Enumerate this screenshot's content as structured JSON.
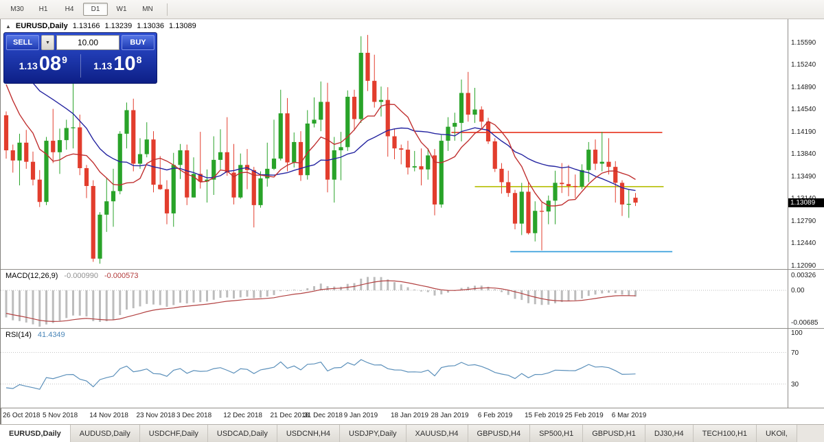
{
  "toolbar": {
    "timeframes": [
      {
        "label": "M30",
        "active": false
      },
      {
        "label": "H1",
        "active": false
      },
      {
        "label": "H4",
        "active": false
      },
      {
        "label": "D1",
        "active": true
      },
      {
        "label": "W1",
        "active": false
      },
      {
        "label": "MN",
        "active": false
      }
    ]
  },
  "icons": {
    "one_click_collapse": "▲",
    "dropdown_arrow": "▼"
  },
  "chart_header": {
    "symbol": "EURUSD,Daily",
    "open": "1.13166",
    "high": "1.13239",
    "low": "1.13036",
    "close": "1.13089"
  },
  "trade_panel": {
    "sell_label": "SELL",
    "buy_label": "BUY",
    "volume": "10.00",
    "bid_prefix": "1.13",
    "bid_big": "08",
    "bid_sup": "9",
    "ask_prefix": "1.13",
    "ask_big": "10",
    "ask_sup": "8"
  },
  "price_axis": {
    "labels": [
      "1.15590",
      "1.15240",
      "1.14890",
      "1.14540",
      "1.14190",
      "1.13840",
      "1.13490",
      "1.13140",
      "1.12790",
      "1.12440",
      "1.12090"
    ],
    "current": "1.13089"
  },
  "macd_panel": {
    "label": "MACD(12,26,9)",
    "value_main": "-0.000990",
    "value_signal": "-0.000573",
    "axis_labels": [
      "0.00326",
      "0.00",
      "-0.00685"
    ]
  },
  "rsi_panel": {
    "label": "RSI(14)",
    "value": "41.4349",
    "levels": [
      "100",
      "70",
      "30"
    ]
  },
  "date_axis": {
    "labels": [
      {
        "text": "26 Oct 2018",
        "index": 2
      },
      {
        "text": "5 Nov 2018",
        "index": 8
      },
      {
        "text": "14 Nov 2018",
        "index": 15
      },
      {
        "text": "23 Nov 2018",
        "index": 22
      },
      {
        "text": "3 Dec 2018",
        "index": 28
      },
      {
        "text": "12 Dec 2018",
        "index": 35
      },
      {
        "text": "21 Dec 2018",
        "index": 42
      },
      {
        "text": "31 Dec 2018",
        "index": 47
      },
      {
        "text": "9 Jan 2019",
        "index": 53
      },
      {
        "text": "18 Jan 2019",
        "index": 60
      },
      {
        "text": "28 Jan 2019",
        "index": 66
      },
      {
        "text": "6 Feb 2019",
        "index": 73
      },
      {
        "text": "15 Feb 2019",
        "index": 80
      },
      {
        "text": "25 Feb 2019",
        "index": 86
      },
      {
        "text": "6 Mar 2019",
        "index": 93
      }
    ]
  },
  "symbol_tabs": [
    {
      "label": "EURUSD,Daily",
      "active": true
    },
    {
      "label": "AUDUSD,Daily",
      "active": false
    },
    {
      "label": "USDCHF,Daily",
      "active": false
    },
    {
      "label": "USDCAD,Daily",
      "active": false
    },
    {
      "label": "USDCNH,H4",
      "active": false
    },
    {
      "label": "USDJPY,Daily",
      "active": false
    },
    {
      "label": "XAUUSD,H4",
      "active": false
    },
    {
      "label": "GBPUSD,H4",
      "active": false
    },
    {
      "label": "SP500,H1",
      "active": false
    },
    {
      "label": "GBPUSD,H1",
      "active": false
    },
    {
      "label": "DJ30,H4",
      "active": false
    },
    {
      "label": "TECH100,H1",
      "active": false
    },
    {
      "label": "UKOil,",
      "active": false
    }
  ],
  "colors": {
    "bull": "#29a329",
    "bear": "#e23d2d",
    "ma_fast": "#c03030",
    "ma_slow": "#2424a0",
    "macd_hist": "#bdbdbd",
    "macd_signal": "#b24040",
    "rsi_line": "#5a8fba",
    "hline_red": "#e8402c",
    "hline_yellow": "#b5bd00",
    "hline_blue": "#3aa0dc"
  },
  "chart_data": {
    "type": "candlestick",
    "symbol": "EURUSD",
    "timeframe": "Daily",
    "price_range": {
      "min": 1.1209,
      "max": 1.1559,
      "tick_step": 0.0035
    },
    "candles": [
      [
        1.1446,
        1.1452,
        1.1378,
        1.1391
      ],
      [
        1.1391,
        1.14,
        1.1356,
        1.1375
      ],
      [
        1.1375,
        1.1417,
        1.1336,
        1.1403
      ],
      [
        1.1403,
        1.1423,
        1.1362,
        1.1373
      ],
      [
        1.1373,
        1.1389,
        1.1336,
        1.1345
      ],
      [
        1.1345,
        1.136,
        1.1302,
        1.131
      ],
      [
        1.131,
        1.1412,
        1.1305,
        1.1406
      ],
      [
        1.1406,
        1.1456,
        1.1371,
        1.1388
      ],
      [
        1.1388,
        1.1425,
        1.1354,
        1.1407
      ],
      [
        1.1407,
        1.1439,
        1.1392,
        1.1426
      ],
      [
        1.1426,
        1.1499,
        1.1394,
        1.1427
      ],
      [
        1.1427,
        1.1447,
        1.1352,
        1.1363
      ],
      [
        1.1363,
        1.1368,
        1.1316,
        1.1335
      ],
      [
        1.1335,
        1.1344,
        1.1216,
        1.1221
      ],
      [
        1.1221,
        1.1294,
        1.1213,
        1.129
      ],
      [
        1.129,
        1.1348,
        1.1263,
        1.1311
      ],
      [
        1.1311,
        1.1362,
        1.1271,
        1.1327
      ],
      [
        1.1327,
        1.1421,
        1.1322,
        1.1417
      ],
      [
        1.1417,
        1.1466,
        1.1394,
        1.1454
      ],
      [
        1.1454,
        1.1472,
        1.1358,
        1.137
      ],
      [
        1.137,
        1.141,
        1.1362,
        1.1385
      ],
      [
        1.1385,
        1.1435,
        1.138,
        1.1408
      ],
      [
        1.1408,
        1.1421,
        1.1325,
        1.1337
      ],
      [
        1.1337,
        1.1382,
        1.1329,
        1.133
      ],
      [
        1.133,
        1.1344,
        1.1275,
        1.1292
      ],
      [
        1.1292,
        1.1387,
        1.1271,
        1.1368
      ],
      [
        1.1368,
        1.1401,
        1.1346,
        1.1391
      ],
      [
        1.1391,
        1.14,
        1.1305,
        1.1317
      ],
      [
        1.1317,
        1.138,
        1.1317,
        1.1354
      ],
      [
        1.1354,
        1.142,
        1.1331,
        1.1342
      ],
      [
        1.1342,
        1.1361,
        1.1309,
        1.1345
      ],
      [
        1.1345,
        1.1413,
        1.1321,
        1.1376
      ],
      [
        1.1376,
        1.1424,
        1.1361,
        1.1388
      ],
      [
        1.1388,
        1.1443,
        1.1351,
        1.1356
      ],
      [
        1.1356,
        1.1401,
        1.1306,
        1.1317
      ],
      [
        1.1317,
        1.1386,
        1.1315,
        1.1368
      ],
      [
        1.1368,
        1.1393,
        1.133,
        1.136
      ],
      [
        1.136,
        1.1365,
        1.127,
        1.1305
      ],
      [
        1.1305,
        1.1358,
        1.1301,
        1.1347
      ],
      [
        1.1347,
        1.1403,
        1.1334,
        1.1362
      ],
      [
        1.1362,
        1.1439,
        1.136,
        1.1378
      ],
      [
        1.1378,
        1.1486,
        1.1375,
        1.1449
      ],
      [
        1.1449,
        1.1473,
        1.1358,
        1.1372
      ],
      [
        1.1372,
        1.1419,
        1.1364,
        1.1404
      ],
      [
        1.1404,
        1.1421,
        1.1343,
        1.1352
      ],
      [
        1.1352,
        1.1454,
        1.1345,
        1.1433
      ],
      [
        1.1433,
        1.1474,
        1.1427,
        1.1439
      ],
      [
        1.1439,
        1.1499,
        1.1421,
        1.1467
      ],
      [
        1.1467,
        1.1497,
        1.1325,
        1.1345
      ],
      [
        1.1345,
        1.1412,
        1.1309,
        1.1391
      ],
      [
        1.1391,
        1.142,
        1.1344,
        1.1396
      ],
      [
        1.1396,
        1.1485,
        1.139,
        1.1475
      ],
      [
        1.1475,
        1.1486,
        1.1422,
        1.144
      ],
      [
        1.144,
        1.157,
        1.1434,
        1.1544
      ],
      [
        1.1544,
        1.1572,
        1.1484,
        1.15
      ],
      [
        1.15,
        1.1541,
        1.1458,
        1.1467
      ],
      [
        1.1467,
        1.1491,
        1.1444,
        1.147
      ],
      [
        1.147,
        1.149,
        1.1381,
        1.1413
      ],
      [
        1.1413,
        1.1425,
        1.1377,
        1.1394
      ],
      [
        1.1394,
        1.14,
        1.1369,
        1.1392
      ],
      [
        1.1392,
        1.1406,
        1.1353,
        1.1364
      ],
      [
        1.1364,
        1.139,
        1.1358,
        1.1366
      ],
      [
        1.1366,
        1.1394,
        1.1336,
        1.1361
      ],
      [
        1.1361,
        1.1394,
        1.1345,
        1.1383
      ],
      [
        1.1383,
        1.1393,
        1.1289,
        1.1306
      ],
      [
        1.1306,
        1.1415,
        1.1301,
        1.1406
      ],
      [
        1.1406,
        1.1443,
        1.139,
        1.1428
      ],
      [
        1.1428,
        1.145,
        1.1406,
        1.1434
      ],
      [
        1.1434,
        1.1502,
        1.1405,
        1.1481
      ],
      [
        1.1481,
        1.1514,
        1.1436,
        1.1447
      ],
      [
        1.1447,
        1.1489,
        1.1434,
        1.1455
      ],
      [
        1.1455,
        1.146,
        1.1424,
        1.1436
      ],
      [
        1.1436,
        1.1442,
        1.1401,
        1.1405
      ],
      [
        1.1405,
        1.141,
        1.1357,
        1.1362
      ],
      [
        1.1362,
        1.1371,
        1.1323,
        1.1341
      ],
      [
        1.1341,
        1.1359,
        1.1318,
        1.1324
      ],
      [
        1.1324,
        1.1329,
        1.1267,
        1.1276
      ],
      [
        1.1276,
        1.134,
        1.1258,
        1.1326
      ],
      [
        1.1326,
        1.1342,
        1.1259,
        1.1261
      ],
      [
        1.1261,
        1.1311,
        1.1248,
        1.1296
      ],
      [
        1.1296,
        1.1309,
        1.1234,
        1.1295
      ],
      [
        1.1295,
        1.132,
        1.1275,
        1.1312
      ],
      [
        1.1312,
        1.1359,
        1.1275,
        1.134
      ],
      [
        1.134,
        1.1371,
        1.1324,
        1.1338
      ],
      [
        1.1338,
        1.1368,
        1.1319,
        1.1335
      ],
      [
        1.1335,
        1.1353,
        1.1316,
        1.1334
      ],
      [
        1.1334,
        1.1369,
        1.133,
        1.136
      ],
      [
        1.136,
        1.1404,
        1.1341,
        1.1392
      ],
      [
        1.1392,
        1.1408,
        1.136,
        1.137
      ],
      [
        1.137,
        1.142,
        1.1358,
        1.1373
      ],
      [
        1.1373,
        1.141,
        1.1353,
        1.1365
      ],
      [
        1.1365,
        1.1374,
        1.1309,
        1.134
      ],
      [
        1.134,
        1.1344,
        1.1288,
        1.1306
      ],
      [
        1.1306,
        1.1329,
        1.1285,
        1.1307
      ],
      [
        1.13166,
        1.13239,
        1.13036,
        1.13089
      ]
    ],
    "ma_warmup_closes": [
      1.1755,
      1.174,
      1.1725,
      1.17,
      1.167,
      1.165,
      1.162,
      1.159,
      1.161,
      1.1595,
      1.157,
      1.1545,
      1.156,
      1.154,
      1.1525,
      1.155,
      1.157,
      1.1585,
      1.1593,
      1.156,
      1.1578,
      1.1575,
      1.1501,
      1.1453,
      1.1512,
      1.1466,
      1.1478
    ],
    "moving_averages": [
      {
        "period": 20,
        "color": "#2424a0"
      },
      {
        "period": 8,
        "color": "#c03030"
      }
    ],
    "hlines": [
      {
        "price": 1.1419,
        "color": "#e8402c",
        "from_index": 66.5,
        "to_index": 98.0
      },
      {
        "price": 1.1334,
        "color": "#b5bd00",
        "from_index": 70.0,
        "to_index": 98.2
      },
      {
        "price": 1.1232,
        "color": "#3aa0dc",
        "from_index": 75.3,
        "to_index": 99.5
      }
    ],
    "indicators": [
      {
        "name": "MACD",
        "params": [
          12,
          26,
          9
        ],
        "current_main": -0.00099,
        "current_signal": -0.000573
      },
      {
        "name": "RSI",
        "params": [
          14
        ],
        "current": 41.4349
      }
    ]
  }
}
